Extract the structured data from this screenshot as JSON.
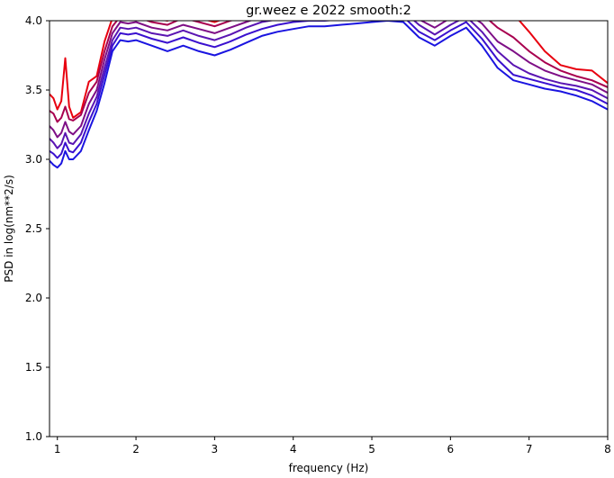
{
  "chart_data": {
    "type": "line",
    "title": "gr.weez e 2022 smooth:2",
    "xlabel": "frequency (Hz)",
    "ylabel": "PSD in log(nm**2/s)",
    "xlim": [
      0.9,
      8.0
    ],
    "ylim": [
      1.0,
      4.0
    ],
    "xticks": [
      1,
      2,
      3,
      4,
      5,
      6,
      7,
      8
    ],
    "yticks": [
      1.0,
      1.5,
      2.0,
      2.5,
      3.0,
      3.5,
      4.0
    ],
    "xtick_labels": [
      "1",
      "2",
      "3",
      "4",
      "5",
      "6",
      "7",
      "8"
    ],
    "ytick_labels": [
      "1.0",
      "1.5",
      "2.0",
      "2.5",
      "3.0",
      "3.5",
      "4.0"
    ],
    "grid": false,
    "legend": "none",
    "x": [
      0.9,
      0.95,
      1.0,
      1.05,
      1.1,
      1.15,
      1.2,
      1.3,
      1.4,
      1.5,
      1.6,
      1.7,
      1.8,
      1.9,
      2.0,
      2.2,
      2.4,
      2.6,
      2.8,
      3.0,
      3.2,
      3.4,
      3.6,
      3.8,
      4.0,
      4.2,
      4.4,
      4.6,
      4.8,
      5.0,
      5.2,
      5.4,
      5.6,
      5.8,
      6.0,
      6.2,
      6.4,
      6.6,
      6.8,
      7.0,
      7.2,
      7.4,
      7.6,
      7.8,
      8.0
    ],
    "series": [
      {
        "color": "#e8000f",
        "values": [
          3.47,
          3.44,
          3.36,
          3.42,
          3.73,
          3.38,
          3.3,
          3.34,
          3.56,
          3.6,
          3.85,
          4.02,
          4.08,
          4.05,
          4.06,
          4.02,
          4.0,
          4.05,
          4.02,
          3.99,
          4.03,
          4.06,
          4.1,
          4.12,
          4.14,
          4.15,
          4.15,
          4.16,
          4.17,
          4.18,
          4.19,
          4.18,
          4.1,
          4.05,
          4.12,
          4.15,
          4.12,
          4.1,
          4.05,
          3.92,
          3.78,
          3.68,
          3.65,
          3.64,
          3.55
        ]
      },
      {
        "color": "#a8004f",
        "values": [
          3.35,
          3.33,
          3.27,
          3.3,
          3.38,
          3.29,
          3.28,
          3.32,
          3.48,
          3.56,
          3.78,
          3.96,
          4.03,
          4.02,
          4.03,
          3.99,
          3.97,
          4.02,
          3.99,
          3.96,
          4.0,
          4.03,
          4.07,
          4.09,
          4.11,
          4.12,
          4.12,
          4.13,
          4.14,
          4.15,
          4.16,
          4.15,
          4.05,
          4.0,
          4.07,
          4.1,
          4.05,
          3.95,
          3.88,
          3.78,
          3.7,
          3.64,
          3.6,
          3.57,
          3.52
        ]
      },
      {
        "color": "#7e0f86",
        "values": [
          3.24,
          3.21,
          3.16,
          3.19,
          3.27,
          3.2,
          3.18,
          3.24,
          3.4,
          3.5,
          3.72,
          3.91,
          3.99,
          3.98,
          3.99,
          3.95,
          3.93,
          3.97,
          3.94,
          3.91,
          3.95,
          3.99,
          4.03,
          4.05,
          4.07,
          4.08,
          4.08,
          4.09,
          4.1,
          4.11,
          4.12,
          4.11,
          4.01,
          3.95,
          4.02,
          4.06,
          3.98,
          3.85,
          3.78,
          3.7,
          3.64,
          3.6,
          3.57,
          3.54,
          3.48
        ]
      },
      {
        "color": "#5a15b2",
        "values": [
          3.15,
          3.12,
          3.08,
          3.11,
          3.19,
          3.12,
          3.11,
          3.18,
          3.33,
          3.45,
          3.66,
          3.86,
          3.95,
          3.94,
          3.95,
          3.91,
          3.89,
          3.93,
          3.89,
          3.86,
          3.9,
          3.95,
          3.99,
          4.01,
          4.03,
          4.04,
          4.04,
          4.05,
          4.06,
          4.07,
          4.08,
          4.07,
          3.97,
          3.9,
          3.97,
          4.03,
          3.92,
          3.78,
          3.68,
          3.62,
          3.58,
          3.55,
          3.53,
          3.5,
          3.44
        ]
      },
      {
        "color": "#3a10cf",
        "values": [
          3.06,
          3.04,
          3.01,
          3.04,
          3.12,
          3.06,
          3.05,
          3.12,
          3.27,
          3.4,
          3.61,
          3.82,
          3.91,
          3.9,
          3.91,
          3.87,
          3.84,
          3.88,
          3.84,
          3.81,
          3.85,
          3.9,
          3.94,
          3.97,
          3.99,
          4.0,
          4.0,
          4.01,
          4.02,
          4.03,
          4.04,
          4.03,
          3.92,
          3.86,
          3.93,
          3.99,
          3.87,
          3.72,
          3.61,
          3.58,
          3.55,
          3.52,
          3.5,
          3.46,
          3.4
        ]
      },
      {
        "color": "#1a14e0",
        "values": [
          2.99,
          2.96,
          2.94,
          2.97,
          3.06,
          3.0,
          3.0,
          3.06,
          3.21,
          3.35,
          3.55,
          3.78,
          3.86,
          3.85,
          3.86,
          3.82,
          3.78,
          3.82,
          3.78,
          3.75,
          3.79,
          3.84,
          3.89,
          3.92,
          3.94,
          3.96,
          3.96,
          3.97,
          3.98,
          3.99,
          4.0,
          3.99,
          3.88,
          3.82,
          3.89,
          3.95,
          3.82,
          3.66,
          3.57,
          3.54,
          3.51,
          3.49,
          3.46,
          3.42,
          3.36
        ]
      }
    ]
  }
}
